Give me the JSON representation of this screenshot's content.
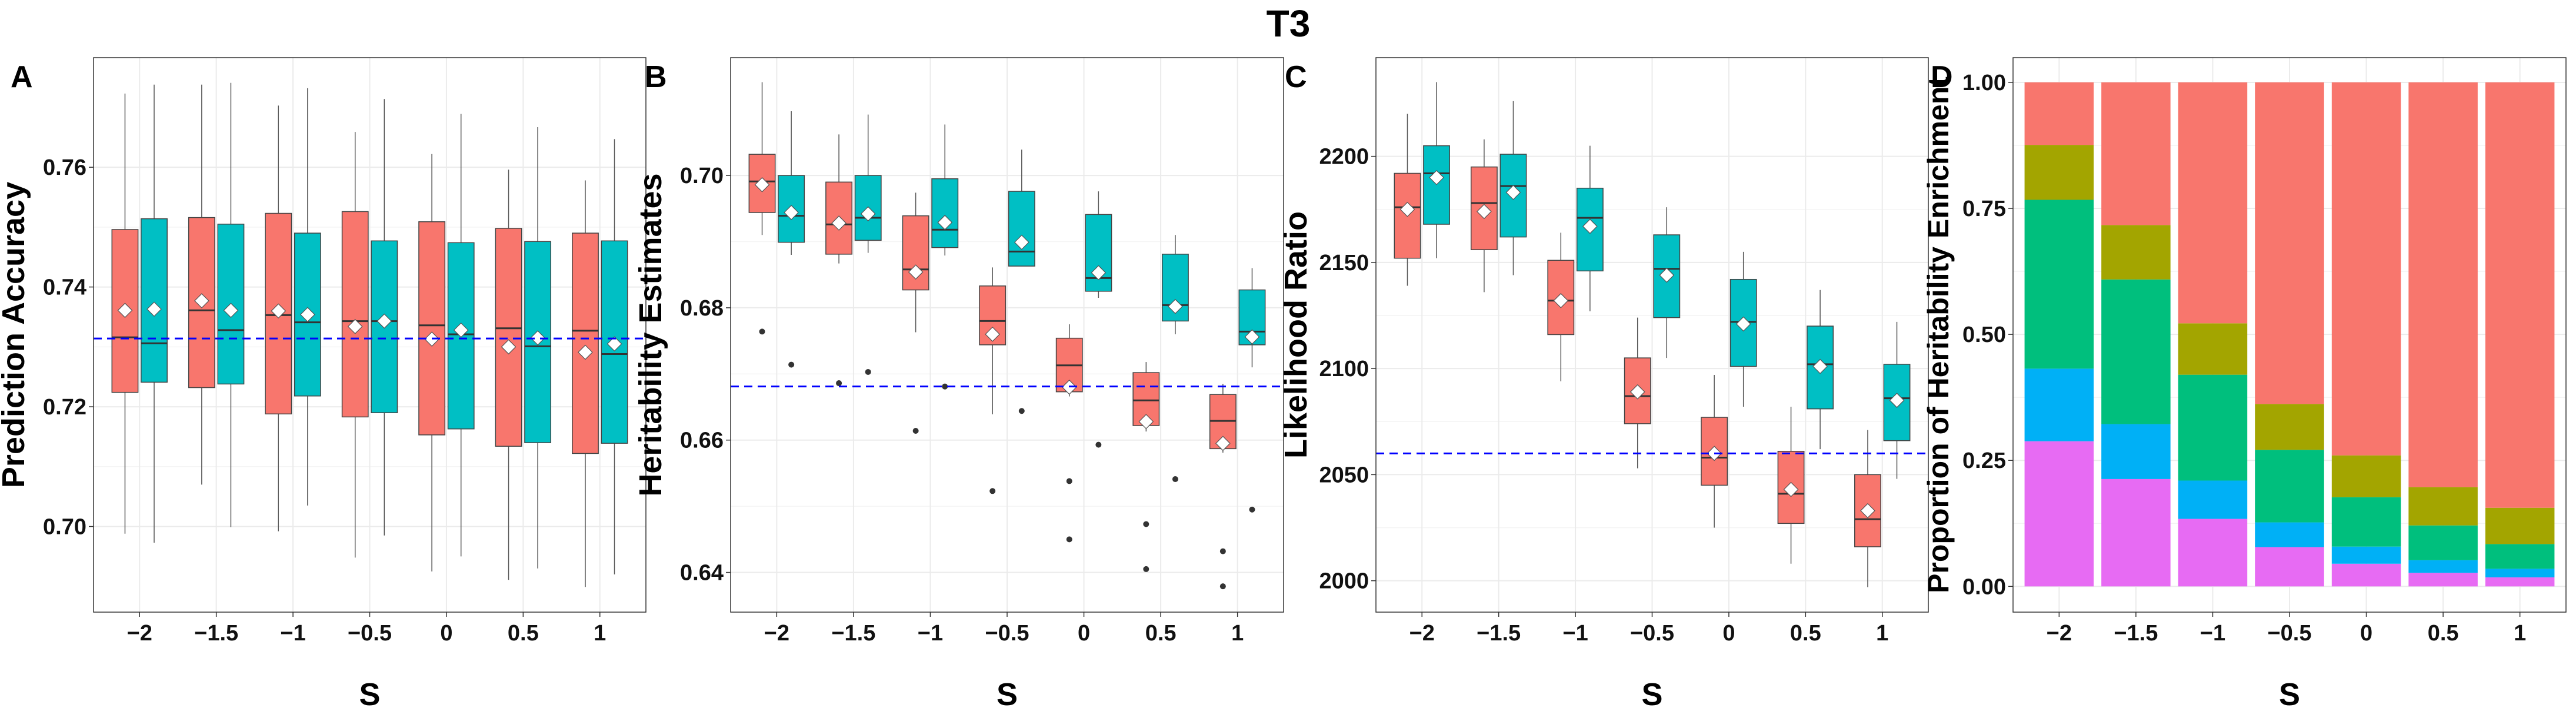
{
  "title": "T3",
  "colors": {
    "red": "#F8766D",
    "teal": "#00BFC4",
    "olive": "#A3A500",
    "green": "#00BF7D",
    "blue": "#00B0F6",
    "pink": "#E76BF3",
    "refline": "#0000FF",
    "grid": "#EBEBEB"
  },
  "chart_data": [
    {
      "panel": "A",
      "type": "box",
      "xlabel": "S",
      "ylabel": "Prediction Accuracy",
      "categories": [
        "−2",
        "−1.5",
        "−1",
        "−0.5",
        "0",
        "0.5",
        "1"
      ],
      "ylim": [
        0.6857,
        0.7783
      ],
      "yticks": [
        0.7,
        0.72,
        0.74,
        0.76
      ],
      "ytick_labels": [
        "0.70",
        "0.72",
        "0.74",
        "0.76"
      ],
      "reference_line": 0.7314,
      "series": [
        {
          "name": "red",
          "boxes": [
            {
              "low": 0.6988,
              "q1": 0.7224,
              "median": 0.7316,
              "q3": 0.7496,
              "high": 0.7723,
              "mean": 0.7361,
              "outliers": []
            },
            {
              "low": 0.707,
              "q1": 0.7232,
              "median": 0.7361,
              "q3": 0.7516,
              "high": 0.7738,
              "mean": 0.7377,
              "outliers": []
            },
            {
              "low": 0.6992,
              "q1": 0.7188,
              "median": 0.7353,
              "q3": 0.7523,
              "high": 0.7703,
              "mean": 0.736,
              "outliers": []
            },
            {
              "low": 0.6948,
              "q1": 0.7183,
              "median": 0.7343,
              "q3": 0.7526,
              "high": 0.7659,
              "mean": 0.7334,
              "outliers": []
            },
            {
              "low": 0.6925,
              "q1": 0.7153,
              "median": 0.7336,
              "q3": 0.7509,
              "high": 0.7622,
              "mean": 0.7313,
              "outliers": []
            },
            {
              "low": 0.6911,
              "q1": 0.7134,
              "median": 0.7331,
              "q3": 0.7498,
              "high": 0.7596,
              "mean": 0.73,
              "outliers": []
            },
            {
              "low": 0.6899,
              "q1": 0.7122,
              "median": 0.7327,
              "q3": 0.749,
              "high": 0.7578,
              "mean": 0.7291,
              "outliers": []
            }
          ]
        },
        {
          "name": "teal",
          "boxes": [
            {
              "low": 0.6973,
              "q1": 0.7241,
              "median": 0.7306,
              "q3": 0.7514,
              "high": 0.7738,
              "mean": 0.7363,
              "outliers": []
            },
            {
              "low": 0.6999,
              "q1": 0.7238,
              "median": 0.7328,
              "q3": 0.7505,
              "high": 0.7741,
              "mean": 0.7361,
              "outliers": []
            },
            {
              "low": 0.7035,
              "q1": 0.7218,
              "median": 0.7341,
              "q3": 0.749,
              "high": 0.7732,
              "mean": 0.7354,
              "outliers": []
            },
            {
              "low": 0.6985,
              "q1": 0.719,
              "median": 0.7343,
              "q3": 0.7477,
              "high": 0.7714,
              "mean": 0.7343,
              "outliers": []
            },
            {
              "low": 0.695,
              "q1": 0.7163,
              "median": 0.7321,
              "q3": 0.7474,
              "high": 0.7689,
              "mean": 0.7328,
              "outliers": []
            },
            {
              "low": 0.693,
              "q1": 0.714,
              "median": 0.7301,
              "q3": 0.7476,
              "high": 0.7667,
              "mean": 0.7315,
              "outliers": []
            },
            {
              "low": 0.692,
              "q1": 0.7139,
              "median": 0.7288,
              "q3": 0.7477,
              "high": 0.7647,
              "mean": 0.7305,
              "outliers": []
            }
          ]
        }
      ]
    },
    {
      "panel": "B",
      "type": "box",
      "xlabel": "S",
      "ylabel": "Heritability Estimates",
      "categories": [
        "−2",
        "−1.5",
        "−1",
        "−0.5",
        "0",
        "0.5",
        "1"
      ],
      "ylim": [
        0.634,
        0.7178
      ],
      "yticks": [
        0.64,
        0.66,
        0.68,
        0.7
      ],
      "ytick_labels": [
        "0.64",
        "0.66",
        "0.68",
        "0.70"
      ],
      "reference_line": 0.6681,
      "series": [
        {
          "name": "red",
          "boxes": [
            {
              "low": 0.691,
              "q1": 0.6944,
              "median": 0.6991,
              "q3": 0.7032,
              "high": 0.7141,
              "mean": 0.6986,
              "outliers": [
                0.6764
              ]
            },
            {
              "low": 0.6867,
              "q1": 0.6881,
              "median": 0.6926,
              "q3": 0.699,
              "high": 0.7062,
              "mean": 0.6928,
              "outliers": [
                0.6686
              ]
            },
            {
              "low": 0.6763,
              "q1": 0.6827,
              "median": 0.6858,
              "q3": 0.6939,
              "high": 0.6974,
              "mean": 0.6854,
              "outliers": [
                0.6614
              ]
            },
            {
              "low": 0.6639,
              "q1": 0.6744,
              "median": 0.678,
              "q3": 0.6833,
              "high": 0.6861,
              "mean": 0.676,
              "outliers": [
                0.6523
              ]
            },
            {
              "low": 0.6666,
              "q1": 0.6673,
              "median": 0.6713,
              "q3": 0.6754,
              "high": 0.6775,
              "mean": 0.668,
              "outliers": [
                0.6538,
                0.645
              ]
            },
            {
              "low": 0.6613,
              "q1": 0.6622,
              "median": 0.666,
              "q3": 0.6702,
              "high": 0.6718,
              "mean": 0.6628,
              "outliers": [
                0.6473,
                0.6405
              ]
            },
            {
              "low": 0.6581,
              "q1": 0.6587,
              "median": 0.6629,
              "q3": 0.6669,
              "high": 0.6685,
              "mean": 0.6595,
              "outliers": [
                0.6432,
                0.6379
              ]
            }
          ]
        },
        {
          "name": "teal",
          "boxes": [
            {
              "low": 0.688,
              "q1": 0.6899,
              "median": 0.6939,
              "q3": 0.7,
              "high": 0.7097,
              "mean": 0.6944,
              "outliers": [
                0.6714
              ]
            },
            {
              "low": 0.6883,
              "q1": 0.6902,
              "median": 0.6936,
              "q3": 0.7,
              "high": 0.7092,
              "mean": 0.6942,
              "outliers": [
                0.6703
              ]
            },
            {
              "low": 0.6879,
              "q1": 0.6891,
              "median": 0.6918,
              "q3": 0.6995,
              "high": 0.7077,
              "mean": 0.6929,
              "outliers": [
                0.6681
              ]
            },
            {
              "low": 0.6863,
              "q1": 0.6863,
              "median": 0.6885,
              "q3": 0.6976,
              "high": 0.7039,
              "mean": 0.6899,
              "outliers": [
                0.6644
              ]
            },
            {
              "low": 0.6815,
              "q1": 0.6825,
              "median": 0.6845,
              "q3": 0.6941,
              "high": 0.6976,
              "mean": 0.6853,
              "outliers": [
                0.6593
              ]
            },
            {
              "low": 0.676,
              "q1": 0.678,
              "median": 0.6804,
              "q3": 0.6881,
              "high": 0.691,
              "mean": 0.6802,
              "outliers": [
                0.6541
              ]
            },
            {
              "low": 0.671,
              "q1": 0.6744,
              "median": 0.6764,
              "q3": 0.6827,
              "high": 0.686,
              "mean": 0.6756,
              "outliers": [
                0.6495
              ]
            }
          ]
        }
      ]
    },
    {
      "panel": "C",
      "type": "box",
      "xlabel": "S",
      "ylabel": "Likelihood Ratio",
      "categories": [
        "−2",
        "−1.5",
        "−1",
        "−0.5",
        "0",
        "0.5",
        "1"
      ],
      "ylim": [
        1985.2,
        2246.5
      ],
      "yticks": [
        2000,
        2050,
        2100,
        2150,
        2200
      ],
      "ytick_labels": [
        "2000",
        "2050",
        "2100",
        "2150",
        "2200"
      ],
      "reference_line": 2060,
      "series": [
        {
          "name": "red",
          "boxes": [
            {
              "low": 2139,
              "q1": 2152,
              "median": 2176,
              "q3": 2192,
              "high": 2220,
              "mean": 2175,
              "outliers": []
            },
            {
              "low": 2136,
              "q1": 2156,
              "median": 2178,
              "q3": 2195,
              "high": 2208,
              "mean": 2174,
              "outliers": []
            },
            {
              "low": 2094,
              "q1": 2116,
              "median": 2132,
              "q3": 2151,
              "high": 2164,
              "mean": 2132,
              "outliers": []
            },
            {
              "low": 2053,
              "q1": 2074,
              "median": 2087,
              "q3": 2105,
              "high": 2124,
              "mean": 2089,
              "outliers": []
            },
            {
              "low": 2025,
              "q1": 2045,
              "median": 2058,
              "q3": 2077,
              "high": 2097,
              "mean": 2060,
              "outliers": []
            },
            {
              "low": 2008,
              "q1": 2027,
              "median": 2041,
              "q3": 2061,
              "high": 2082,
              "mean": 2043,
              "outliers": []
            },
            {
              "low": 1997,
              "q1": 2016,
              "median": 2029,
              "q3": 2050,
              "high": 2071,
              "mean": 2033,
              "outliers": []
            }
          ]
        },
        {
          "name": "teal",
          "boxes": [
            {
              "low": 2152,
              "q1": 2168,
              "median": 2192,
              "q3": 2205,
              "high": 2235,
              "mean": 2190,
              "outliers": []
            },
            {
              "low": 2144,
              "q1": 2162,
              "median": 2186,
              "q3": 2201,
              "high": 2226,
              "mean": 2183,
              "outliers": []
            },
            {
              "low": 2127,
              "q1": 2146,
              "median": 2171,
              "q3": 2185,
              "high": 2205,
              "mean": 2167,
              "outliers": []
            },
            {
              "low": 2105,
              "q1": 2124,
              "median": 2147,
              "q3": 2163,
              "high": 2176,
              "mean": 2144,
              "outliers": []
            },
            {
              "low": 2082,
              "q1": 2101,
              "median": 2122,
              "q3": 2142,
              "high": 2155,
              "mean": 2121,
              "outliers": []
            },
            {
              "low": 2062,
              "q1": 2081,
              "median": 2102,
              "q3": 2120,
              "high": 2137,
              "mean": 2101,
              "outliers": []
            },
            {
              "low": 2048,
              "q1": 2066,
              "median": 2086,
              "q3": 2102,
              "high": 2122,
              "mean": 2085,
              "outliers": []
            }
          ]
        }
      ]
    },
    {
      "panel": "D",
      "type": "bar",
      "stacked": true,
      "xlabel": "S",
      "ylabel": "Proportion of Heritability Enrichment",
      "categories": [
        "−2",
        "−1.5",
        "−1",
        "−0.5",
        "0",
        "0.5",
        "1"
      ],
      "ylim": [
        -0.051,
        1.049
      ],
      "yticks": [
        0,
        0.25,
        0.5,
        0.75,
        1.0
      ],
      "ytick_labels": [
        "0.00",
        "0.25",
        "0.50",
        "0.75",
        "1.00"
      ],
      "series": [
        {
          "name": "pink",
          "values": [
            0.288,
            0.213,
            0.134,
            0.078,
            0.045,
            0.027,
            0.018
          ]
        },
        {
          "name": "blue",
          "values": [
            0.144,
            0.109,
            0.076,
            0.049,
            0.034,
            0.025,
            0.017
          ]
        },
        {
          "name": "green",
          "values": [
            0.335,
            0.287,
            0.21,
            0.144,
            0.098,
            0.069,
            0.049
          ]
        },
        {
          "name": "olive",
          "values": [
            0.109,
            0.108,
            0.102,
            0.091,
            0.083,
            0.076,
            0.072
          ]
        },
        {
          "name": "red",
          "values": [
            0.124,
            0.283,
            0.478,
            0.638,
            0.74,
            0.803,
            0.844
          ]
        }
      ]
    }
  ]
}
